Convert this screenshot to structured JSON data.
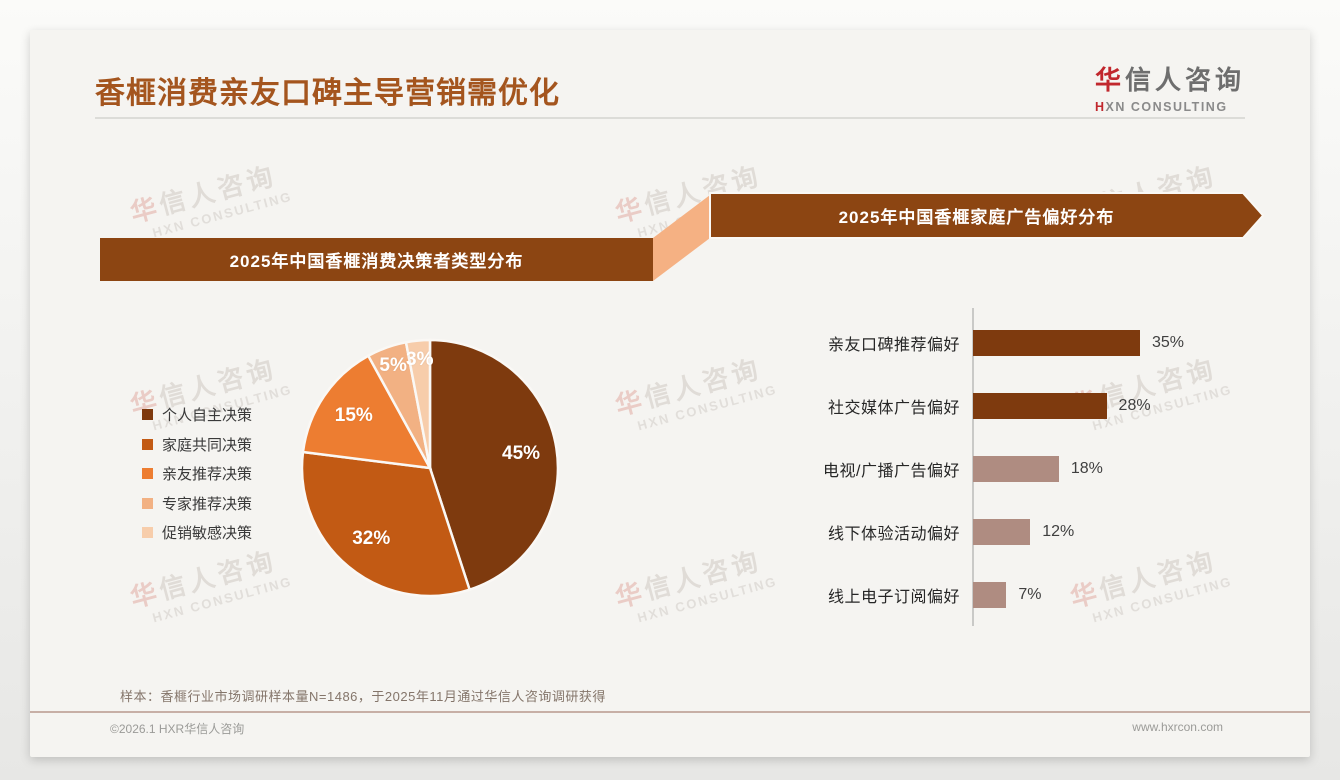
{
  "page": {
    "title": "香榧消费亲友口碑主导营销需优化",
    "logo": {
      "zh_accent": "华",
      "zh_rest": "信人咨询",
      "en_accent": "H",
      "en_rest": "XN CONSULTING"
    },
    "watermark": {
      "zh_accent": "华",
      "zh_rest": "信人咨询",
      "en": "HXN CONSULTING"
    },
    "footnote": "样本：香榧行业市场调研样本量N=1486，于2025年11月通过华信人咨询调研获得",
    "footer": {
      "copyright": "©2026.1 HXR华信人咨询",
      "website": "www.hxrcon.com"
    }
  },
  "colors": {
    "title": "#A4551E",
    "banner": "#8C4512",
    "connector": "#F5B183",
    "bar_dark": "#7E3A0E",
    "bar_muted": "#AF8C81",
    "axis": "#C9C9C7"
  },
  "chart_data": [
    {
      "type": "pie",
      "title": "2025年中国香榧消费决策者类型分布",
      "labels": [
        "个人自主决策",
        "家庭共同决策",
        "亲友推荐决策",
        "专家推荐决策",
        "促销敏感决策"
      ],
      "values": [
        45,
        32,
        15,
        5,
        3
      ],
      "data_labels": [
        "45%",
        "32%",
        "15%",
        "5%",
        "3%"
      ],
      "colors": [
        "#7E3A0E",
        "#C25A14",
        "#ED7D31",
        "#F2B183",
        "#F7CDAB"
      ],
      "start_angle": "top",
      "direction": "clockwise",
      "legend_position": "left",
      "slice_border_color": "#FAF8F5"
    },
    {
      "type": "bar",
      "title": "2025年中国香榧家庭广告偏好分布",
      "orientation": "horizontal",
      "categories": [
        "亲友口碑推荐偏好",
        "社交媒体广告偏好",
        "电视/广播广告偏好",
        "线下体验活动偏好",
        "线上电子订阅偏好"
      ],
      "values": [
        35,
        28,
        18,
        12,
        7
      ],
      "data_labels": [
        "35%",
        "28%",
        "18%",
        "12%",
        "7%"
      ],
      "bar_colors": [
        "#7E3A0E",
        "#7E3A0E",
        "#AF8C81",
        "#AF8C81",
        "#AF8C81"
      ],
      "xlim": [
        0,
        40
      ],
      "grid": false,
      "value_label_position": "right-of-bar"
    }
  ]
}
